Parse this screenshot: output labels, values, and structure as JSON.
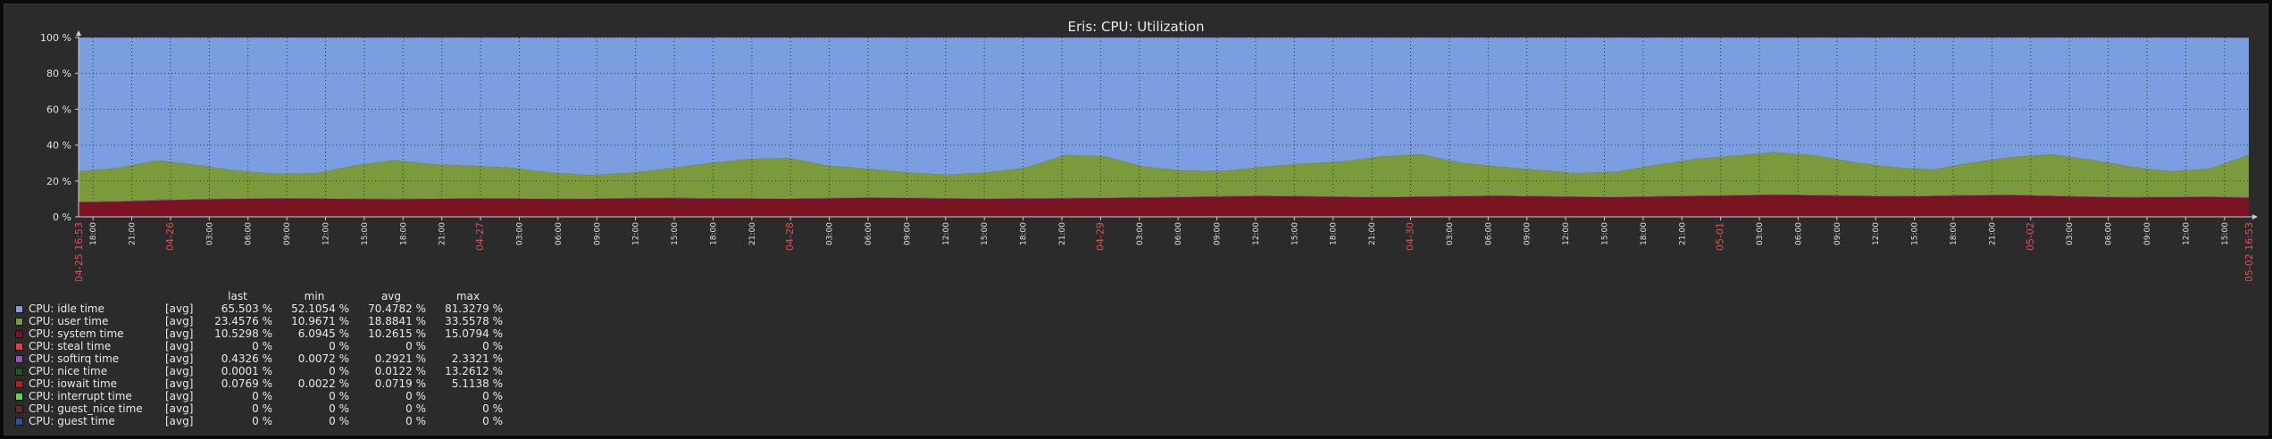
{
  "chart_data": {
    "type": "area",
    "title": "Eris: CPU: Utilization",
    "ylim": [
      0,
      100
    ],
    "y_ticks": [
      "0 %",
      "20 %",
      "40 %",
      "60 %",
      "80 %",
      "100 %"
    ],
    "stacked": true,
    "x_tick_labels": [
      {
        "t": 0.05,
        "label": "18:00",
        "red": false
      },
      {
        "t": 0.1,
        "label": "21:00",
        "red": false
      },
      {
        "t": 0.15,
        "label": "04-26",
        "red": true
      },
      {
        "t": 0.2,
        "label": "03:00",
        "red": false
      },
      {
        "t": 0.25,
        "label": "06:00",
        "red": false
      },
      {
        "t": 0.3,
        "label": "09:00",
        "red": false
      },
      {
        "t": 0.35,
        "label": "12:00",
        "red": false
      },
      {
        "t": 0.4,
        "label": "15:00",
        "red": false
      },
      {
        "t": 0.45,
        "label": "18:00",
        "red": false
      },
      {
        "t": 0.5,
        "label": "21:00",
        "red": false
      },
      {
        "t": 0.55,
        "label": "04-27",
        "red": true
      },
      {
        "t": 0.6,
        "label": "03:00",
        "red": false
      },
      {
        "t": 0.65,
        "label": "06:00",
        "red": false
      },
      {
        "t": 0.7,
        "label": "09:00",
        "red": false
      },
      {
        "t": 0.75,
        "label": "12:00",
        "red": false
      },
      {
        "t": 0.8,
        "label": "15:00",
        "red": false
      },
      {
        "t": 0.85,
        "label": "18:00",
        "red": false
      },
      {
        "t": 0.9,
        "label": "21:00",
        "red": false
      },
      {
        "t": 0.95,
        "label": "04-28",
        "red": true
      },
      {
        "t": 1.0,
        "label": "03:00",
        "red": false
      },
      {
        "t": 1.05,
        "label": "06:00",
        "red": false
      }
    ],
    "x_labels_list": [
      "18:00",
      "21:00",
      "04-26",
      "03:00",
      "06:00",
      "09:00",
      "12:00",
      "15:00",
      "18:00",
      "21:00",
      "04-27",
      "03:00",
      "06:00",
      "09:00",
      "12:00",
      "15:00",
      "18:00",
      "21:00",
      "04-28",
      "03:00",
      "06:00",
      "09:00",
      "12:00",
      "15:00",
      "18:00",
      "21:00",
      "04-29",
      "03:00",
      "06:00",
      "09:00",
      "12:00",
      "15:00",
      "18:00",
      "21:00",
      "04-30",
      "03:00",
      "06:00",
      "09:00",
      "12:00",
      "15:00",
      "18:00",
      "21:00",
      "05-01",
      "03:00",
      "06:00",
      "09:00",
      "12:00",
      "15:00",
      "18:00",
      "21:00",
      "05-02",
      "03:00",
      "06:00",
      "09:00",
      "12:00",
      "15:00"
    ],
    "x_label_red": [
      "04-26",
      "04-27",
      "04-28",
      "04-29",
      "04-30",
      "05-01",
      "05-02"
    ],
    "x_start_label": "04-25 16:53",
    "x_end_label": "05-02 16:53",
    "series": [
      {
        "name": "system time",
        "color": "#7a1322",
        "values": [
          8.0,
          8.4,
          9.1,
          9.6,
          9.9,
          10.1,
          10.0,
          9.8,
          9.7,
          9.9,
          10.1,
          10.0,
          9.8,
          9.9,
          10.2,
          10.3,
          10.1,
          10.0,
          9.9,
          10.2,
          10.5,
          10.4,
          10.1,
          9.9,
          10.0,
          10.2,
          10.4,
          10.6,
          10.9,
          11.2,
          11.5,
          11.3,
          11.0,
          10.8,
          11.1,
          11.4,
          11.6,
          11.3,
          11.0,
          10.9,
          11.2,
          11.5,
          11.8,
          12.2,
          11.9,
          11.6,
          11.3,
          11.5,
          11.9,
          12.0,
          11.5,
          11.0,
          10.7,
          10.9,
          11.0,
          10.53
        ]
      },
      {
        "name": "softirq time",
        "color": "#9254c9",
        "values": [
          0.3,
          0.3,
          0.4,
          0.3,
          0.3,
          0.3,
          0.3,
          0.3,
          0.4,
          0.3,
          0.3,
          0.3,
          0.3,
          0.3,
          0.3,
          0.3,
          0.3,
          0.3,
          0.3,
          0.3,
          0.3,
          0.3,
          0.3,
          0.3,
          0.4,
          0.3,
          0.3,
          0.3,
          0.3,
          0.3,
          0.3,
          0.3,
          0.3,
          0.3,
          0.3,
          0.3,
          0.3,
          0.3,
          0.3,
          0.3,
          0.3,
          0.3,
          0.3,
          0.3,
          0.3,
          0.3,
          0.3,
          0.3,
          0.3,
          0.3,
          0.3,
          0.3,
          0.3,
          0.3,
          0.3,
          0.43
        ]
      },
      {
        "name": "user time",
        "color": "#7b9a3c",
        "values": [
          17.0,
          18.5,
          22.0,
          19.0,
          15.5,
          13.5,
          14.0,
          18.5,
          21.5,
          19.0,
          18.0,
          17.0,
          14.5,
          13.0,
          14.0,
          16.5,
          19.5,
          22.0,
          22.5,
          18.0,
          16.0,
          14.0,
          13.0,
          14.5,
          17.0,
          24.0,
          23.0,
          17.0,
          14.5,
          14.0,
          16.0,
          18.0,
          19.5,
          22.5,
          23.5,
          18.5,
          16.0,
          14.5,
          13.0,
          14.0,
          17.5,
          20.5,
          22.0,
          23.5,
          22.0,
          18.5,
          16.0,
          14.5,
          18.0,
          21.0,
          23.0,
          20.5,
          17.0,
          14.0,
          15.5,
          23.46
        ]
      },
      {
        "name": "idle time",
        "color": "#7b9ee1",
        "values": [
          74.7,
          72.8,
          68.5,
          71.1,
          74.3,
          76.1,
          75.7,
          71.4,
          68.4,
          70.8,
          71.6,
          72.7,
          75.4,
          76.8,
          75.5,
          72.9,
          70.1,
          67.7,
          67.3,
          71.5,
          73.2,
          75.3,
          76.6,
          75.3,
          72.6,
          65.5,
          66.3,
          72.1,
          74.3,
          74.5,
          72.2,
          70.4,
          69.2,
          66.4,
          65.1,
          69.8,
          72.1,
          73.9,
          75.7,
          74.8,
          71.0,
          67.7,
          65.9,
          64.0,
          65.8,
          69.6,
          72.4,
          73.7,
          69.8,
          66.7,
          65.2,
          68.2,
          72.0,
          74.8,
          73.2,
          65.503
        ]
      }
    ]
  },
  "legend": {
    "headers": [
      "last",
      "min",
      "avg",
      "max"
    ],
    "rows": [
      {
        "name": "CPU: idle time",
        "agg": "[avg]",
        "last": "65.503 %",
        "min": "52.1054 %",
        "avg": "70.4782 %",
        "max": "81.3279 %",
        "color": "#7b9ee1"
      },
      {
        "name": "CPU: user time",
        "agg": "[avg]",
        "last": "23.4576 %",
        "min": "10.9671 %",
        "avg": "18.8841 %",
        "max": "33.5578 %",
        "color": "#7b9a3c"
      },
      {
        "name": "CPU: system time",
        "agg": "[avg]",
        "last": "10.5298 %",
        "min": "6.0945 %",
        "avg": "10.2615 %",
        "max": "15.0794 %",
        "color": "#7a1322"
      },
      {
        "name": "CPU: steal time",
        "agg": "[avg]",
        "last": "0 %",
        "min": "0 %",
        "avg": "0 %",
        "max": "0 %",
        "color": "#ec3b3b"
      },
      {
        "name": "CPU: softirq time",
        "agg": "[avg]",
        "last": "0.4326 %",
        "min": "0.0072 %",
        "avg": "0.2921 %",
        "max": "2.3321 %",
        "color": "#9254c9"
      },
      {
        "name": "CPU: nice time",
        "agg": "[avg]",
        "last": "0.0001 %",
        "min": "0 %",
        "avg": "0.0122 %",
        "max": "13.2612 %",
        "color": "#1a5a1a"
      },
      {
        "name": "CPU: iowait time",
        "agg": "[avg]",
        "last": "0.0769 %",
        "min": "0.0022 %",
        "avg": "0.0719 %",
        "max": "5.1138 %",
        "color": "#b0201c"
      },
      {
        "name": "CPU: interrupt time",
        "agg": "[avg]",
        "last": "0 %",
        "min": "0 %",
        "avg": "0 %",
        "max": "0 %",
        "color": "#6fcf4a"
      },
      {
        "name": "CPU: guest_nice time",
        "agg": "[avg]",
        "last": "0 %",
        "min": "0 %",
        "avg": "0 %",
        "max": "0 %",
        "color": "#5e2c2c"
      },
      {
        "name": "CPU: guest time",
        "agg": "[avg]",
        "last": "0 %",
        "min": "0 %",
        "avg": "0 %",
        "max": "0 %",
        "color": "#2e4f9e"
      }
    ]
  }
}
